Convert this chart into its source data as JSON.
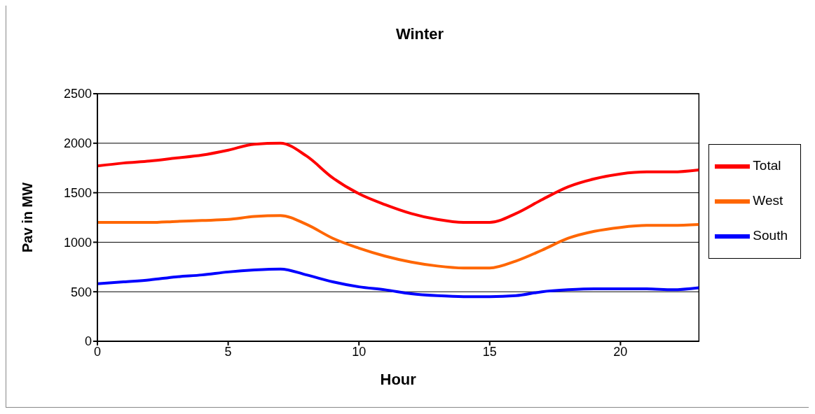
{
  "chart_data": {
    "type": "line",
    "title": "Winter",
    "xlabel": "Hour",
    "ylabel": "Pav in MW",
    "x": [
      0,
      1,
      2,
      3,
      4,
      5,
      6,
      7,
      8,
      9,
      10,
      11,
      12,
      13,
      14,
      15,
      16,
      17,
      18,
      19,
      20,
      21,
      22,
      23
    ],
    "series": [
      {
        "name": "Total",
        "color": "#ff0000",
        "values": [
          1770,
          1800,
          1820,
          1850,
          1880,
          1930,
          1990,
          2000,
          1870,
          1650,
          1490,
          1380,
          1290,
          1230,
          1200,
          1200,
          1290,
          1430,
          1560,
          1640,
          1690,
          1710,
          1710,
          1730
        ]
      },
      {
        "name": "West",
        "color": "#ff6600",
        "values": [
          1200,
          1200,
          1200,
          1210,
          1220,
          1230,
          1260,
          1270,
          1180,
          1040,
          940,
          860,
          800,
          760,
          740,
          740,
          810,
          920,
          1040,
          1110,
          1150,
          1170,
          1170,
          1180
        ]
      },
      {
        "name": "South",
        "color": "#0000ff",
        "values": [
          580,
          600,
          620,
          650,
          670,
          700,
          720,
          730,
          670,
          600,
          550,
          520,
          480,
          460,
          450,
          450,
          460,
          500,
          520,
          530,
          530,
          530,
          520,
          540
        ]
      }
    ],
    "xlim": [
      0,
      23
    ],
    "xticks": [
      0,
      5,
      10,
      15,
      20
    ],
    "ylim": [
      0,
      2500
    ],
    "yticks": [
      0,
      500,
      1000,
      1500,
      2000,
      2500
    ],
    "grid": "y",
    "legend": "right",
    "marker": "none",
    "line_style": "solid"
  }
}
